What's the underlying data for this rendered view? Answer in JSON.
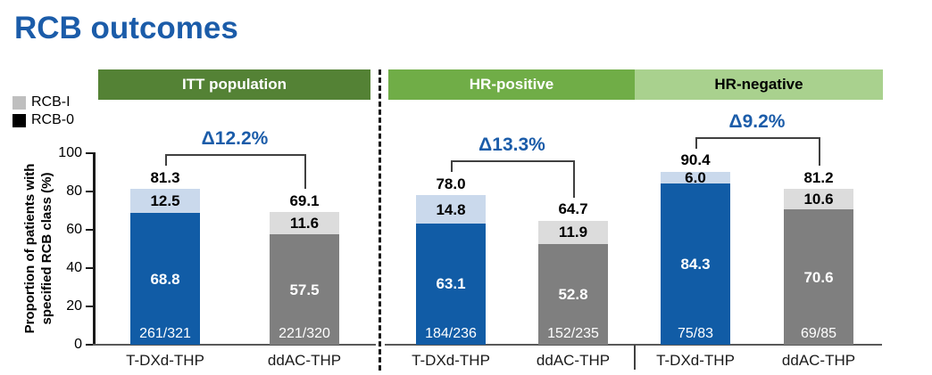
{
  "title": "RCB outcomes",
  "accent_color": "#1B5CA9",
  "legend": [
    {
      "label": "RCB-I",
      "swatch_color": "#BFBFBF"
    },
    {
      "label": "RCB-0",
      "swatch_color": "#000000"
    }
  ],
  "chart_data": {
    "type": "bar",
    "stacked": true,
    "ylabel": "Proportion of patients with specified RCB class (%)",
    "ylabel_lines": [
      "Proportion of patients with",
      "specified RCB class (%)"
    ],
    "ylim": [
      0,
      100
    ],
    "yticks": [
      0,
      20,
      40,
      60,
      80,
      100
    ],
    "grid": false,
    "legend_position": "left",
    "groups": [
      {
        "header": "ITT population",
        "header_bg": "#548235",
        "header_text": "#FFFFFF",
        "delta_label": "Δ12.2%",
        "bars": [
          {
            "arm": "T-DXd-THP",
            "total": "81.3",
            "rcb1": "12.5",
            "rcb0": "68.8",
            "fraction": "261/321",
            "color_main": "#115CA6",
            "color_cap": "#CAD9EC"
          },
          {
            "arm": "ddAC-THP",
            "total": "69.1",
            "rcb1": "11.6",
            "rcb0": "57.5",
            "fraction": "221/320",
            "color_main": "#7F7F7F",
            "color_cap": "#DCDCDC"
          }
        ]
      },
      {
        "header": "HR-positive",
        "header_bg": "#70AD47",
        "header_text": "#FFFFFF",
        "delta_label": "Δ13.3%",
        "bars": [
          {
            "arm": "T-DXd-THP",
            "total": "78.0",
            "rcb1": "14.8",
            "rcb0": "63.1",
            "fraction": "184/236",
            "color_main": "#115CA6",
            "color_cap": "#CAD9EC"
          },
          {
            "arm": "ddAC-THP",
            "total": "64.7",
            "rcb1": "11.9",
            "rcb0": "52.8",
            "fraction": "152/235",
            "color_main": "#7F7F7F",
            "color_cap": "#DCDCDC"
          }
        ]
      },
      {
        "header": "HR-negative",
        "header_bg": "#A9D18E",
        "header_text": "#000000",
        "delta_label": "Δ9.2%",
        "bars": [
          {
            "arm": "T-DXd-THP",
            "total": "90.4",
            "rcb1": "6.0",
            "rcb0": "84.3",
            "fraction": "75/83",
            "color_main": "#115CA6",
            "color_cap": "#CAD9EC"
          },
          {
            "arm": "ddAC-THP",
            "total": "81.2",
            "rcb1": "10.6",
            "rcb0": "70.6",
            "fraction": "69/85",
            "color_main": "#7F7F7F",
            "color_cap": "#DCDCDC"
          }
        ]
      }
    ]
  }
}
